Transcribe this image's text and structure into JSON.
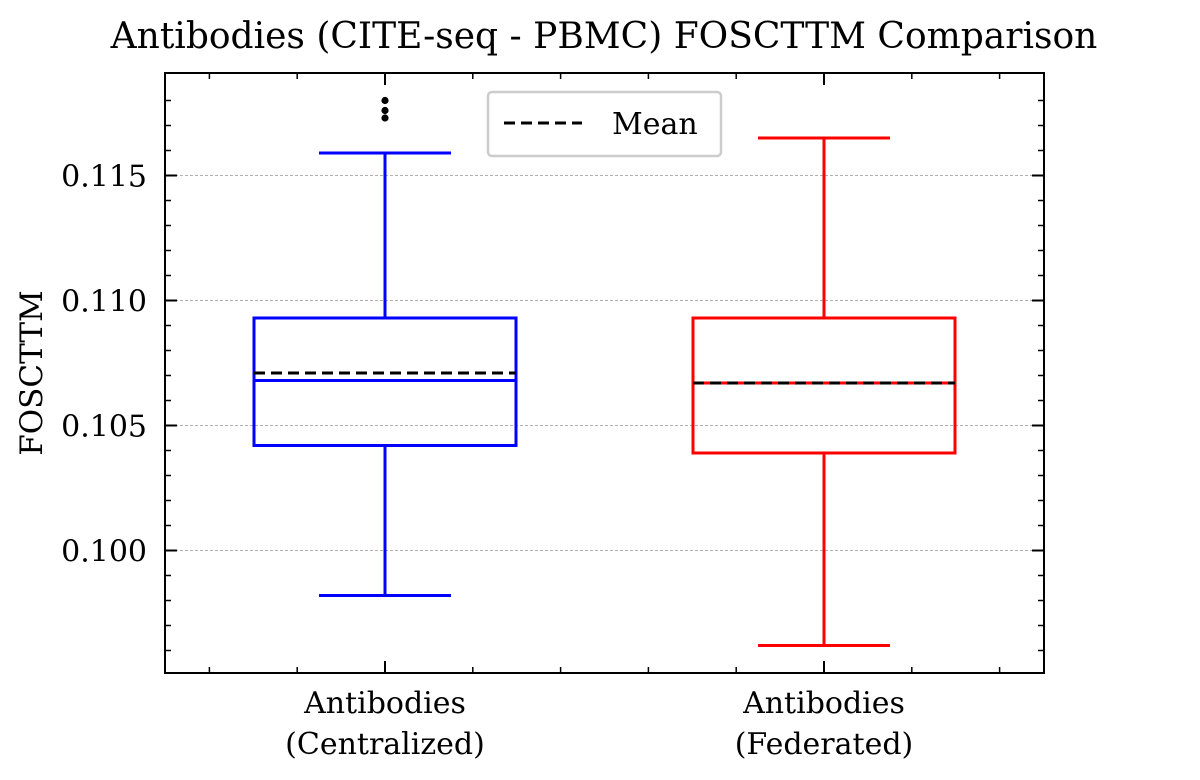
{
  "chart_data": {
    "type": "box",
    "title": "Antibodies (CITE-seq - PBMC) FOSCTTM Comparison",
    "xlabel": "",
    "ylabel": "FOSCTTM",
    "ylim": [
      0.0951,
      0.1191
    ],
    "yticks": [
      0.1,
      0.105,
      0.11,
      0.115
    ],
    "ytick_labels": [
      "0.100",
      "0.105",
      "0.110",
      "0.115"
    ],
    "grid": "y",
    "legend": {
      "position": "top-center",
      "entries": [
        {
          "label": "Mean",
          "style": "dashed",
          "color": "#000000"
        }
      ]
    },
    "categories": [
      {
        "line1": "Antibodies",
        "line2": "(Centralized)"
      },
      {
        "line1": "Antibodies",
        "line2": "(Federated)"
      }
    ],
    "series": [
      {
        "color": "#0000ff",
        "whisker_low": 0.0982,
        "q1": 0.1042,
        "median": 0.1068,
        "mean": 0.1071,
        "q3": 0.1093,
        "whisker_high": 0.1159,
        "outliers": [
          0.1173,
          0.1176,
          0.118
        ]
      },
      {
        "color": "#ff0000",
        "whisker_low": 0.0962,
        "q1": 0.1039,
        "median": 0.1067,
        "mean": 0.1067,
        "q3": 0.1093,
        "whisker_high": 0.1165,
        "outliers": []
      }
    ]
  }
}
